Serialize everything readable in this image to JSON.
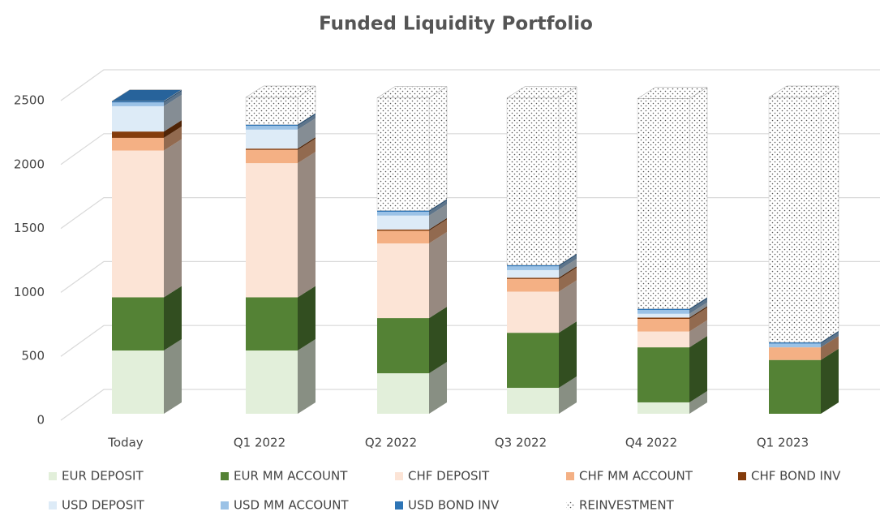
{
  "chart_data": {
    "type": "bar",
    "stacked": true,
    "three_d": true,
    "title": "Funded Liquidity Portfolio",
    "categories": [
      "Today",
      "Q1 2022",
      "Q2 2022",
      "Q3 2022",
      "Q4 2022",
      "Q1 2023"
    ],
    "series": [
      {
        "name": "EUR DEPOSIT",
        "color": "#e2efda",
        "values": [
          500,
          500,
          320,
          205,
          90,
          0
        ]
      },
      {
        "name": "EUR MM ACCOUNT",
        "color": "#548235",
        "values": [
          420,
          420,
          436,
          435,
          435,
          425
        ]
      },
      {
        "name": "CHF DEPOSIT",
        "color": "#fce4d6",
        "values": [
          1160,
          1060,
          590,
          325,
          125,
          0
        ]
      },
      {
        "name": "CHF MM ACCOUNT",
        "color": "#f4b084",
        "values": [
          100,
          105,
          100,
          100,
          100,
          100
        ]
      },
      {
        "name": "CHF BOND INV",
        "color": "#843c0c",
        "values": [
          50,
          10,
          10,
          10,
          10,
          0
        ]
      },
      {
        "name": "USD DEPOSIT",
        "color": "#ddebf7",
        "values": [
          200,
          150,
          110,
          60,
          30,
          0
        ]
      },
      {
        "name": "USD MM ACCOUNT",
        "color": "#9bc2e6",
        "values": [
          30,
          30,
          30,
          30,
          30,
          30
        ]
      },
      {
        "name": "USD BOND INV",
        "color": "#2e75b6",
        "values": [
          10,
          10,
          10,
          10,
          10,
          10
        ]
      },
      {
        "name": "REINVESTMENT",
        "color": "#ffffff",
        "pattern": "dotted",
        "values": [
          0,
          215,
          890,
          1320,
          1660,
          1935
        ]
      }
    ],
    "ylim": [
      0,
      2500
    ],
    "yticks": [
      0,
      500,
      1000,
      1500,
      2000,
      2500
    ],
    "grid": true,
    "legend": "bottom"
  }
}
